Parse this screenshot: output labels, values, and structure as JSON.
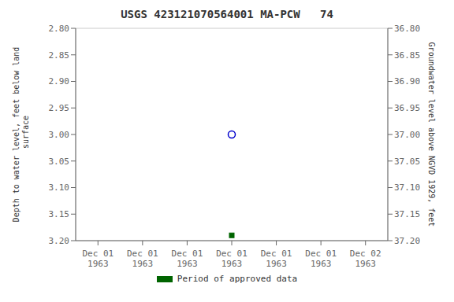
{
  "chart_data": {
    "type": "scatter",
    "title": "USGS 423121070564001 MA-PCW   74",
    "y_label": "Depth to water level, feet below land\n surface",
    "y2_label": "Groundwater level above NGVD 1929, feet",
    "categories": [
      "Dec 01\n1963",
      "Dec 01\n1963",
      "Dec 01\n1963",
      "Dec 01\n1963",
      "Dec 01\n1963",
      "Dec 01\n1963",
      "Dec 02\n1963"
    ],
    "series": [
      {
        "color": "#0000cc",
        "marker": "open circle",
        "values": [
          null,
          null,
          null,
          3.0,
          null,
          null,
          null
        ]
      },
      {
        "name": "Period of approved data",
        "color": "#006400",
        "marker": "square",
        "values": [
          null,
          null,
          null,
          3.19,
          null,
          null,
          null
        ]
      }
    ],
    "ylim": [
      3.2,
      2.8
    ],
    "yticks": [
      {
        "value": 2.8,
        "label": "2.80"
      },
      2.85,
      {
        "value": 2.9,
        "label": "2.90"
      },
      2.95,
      {
        "value": 3.0,
        "label": "3.00"
      },
      3.05,
      {
        "value": 3.1,
        "label": "3.10"
      },
      3.15,
      {
        "value": 3.2,
        "label": "3.20"
      }
    ],
    "y2lim": [
      37.2,
      36.8
    ],
    "y2ticks": [
      {
        "value": 37.2,
        "label": "37.20"
      },
      37.15,
      {
        "value": 37.1,
        "label": "37.10"
      },
      37.05,
      {
        "value": 37.0,
        "label": "37.00"
      },
      36.95,
      {
        "value": 36.9,
        "label": "36.90"
      },
      36.85,
      {
        "value": 36.8,
        "label": "36.80"
      }
    ],
    "grid": true,
    "legend": "bottom"
  }
}
